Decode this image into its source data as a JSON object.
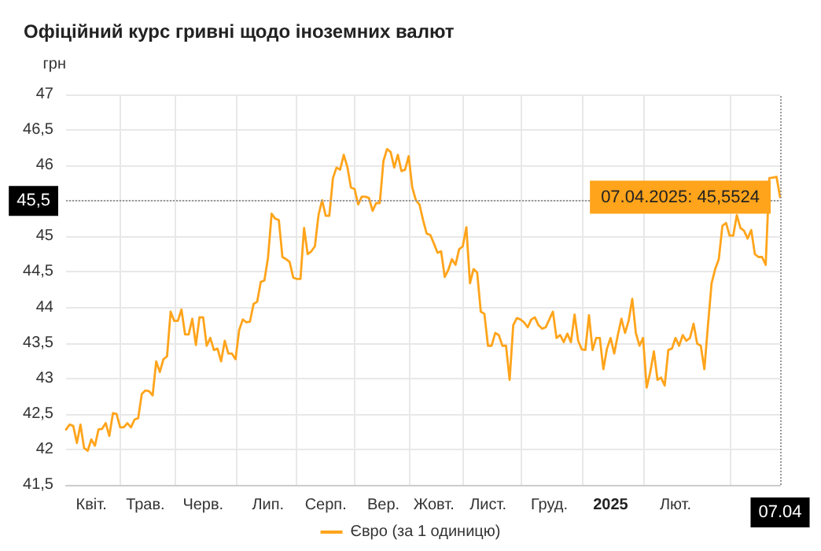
{
  "chart_data": {
    "type": "line",
    "title": "Офіційний курс гривні щодо іноземних валют",
    "ylabel": "грн",
    "categories": [
      null,
      null,
      null,
      null,
      null,
      null,
      null,
      "Квіт.",
      null,
      null,
      null,
      null,
      null,
      null,
      null,
      null,
      null,
      null,
      null,
      null,
      null,
      null,
      "Трав.",
      null,
      null,
      null,
      null,
      null,
      null,
      null,
      null,
      null,
      null,
      null,
      null,
      null,
      null,
      null,
      "Черв.",
      null,
      null,
      null,
      null,
      null,
      null,
      null,
      null,
      null,
      null,
      null,
      null,
      null,
      null,
      null,
      null,
      null,
      "Лип.",
      null,
      null,
      null,
      null,
      null,
      null,
      null,
      null,
      null,
      null,
      null,
      null,
      null,
      null,
      null,
      "Серп.",
      null,
      null,
      null,
      null,
      null,
      null,
      null,
      null,
      null,
      null,
      null,
      null,
      null,
      null,
      null,
      "Вер.",
      null,
      null,
      null,
      null,
      null,
      null,
      null,
      null,
      null,
      null,
      null,
      null,
      null,
      "Жовт.",
      null,
      null,
      null,
      null,
      null,
      null,
      null,
      null,
      null,
      null,
      null,
      null,
      null,
      null,
      "Лист.",
      null,
      null,
      null,
      null,
      null,
      null,
      null,
      null,
      null,
      null,
      null,
      null,
      null,
      null,
      null,
      null,
      "Груд.",
      null,
      null,
      null,
      null,
      null,
      null,
      null,
      null,
      null,
      null,
      null,
      null,
      null,
      null,
      null,
      null,
      "2025",
      null,
      null,
      null,
      null,
      null,
      null,
      null,
      null,
      null,
      null,
      null,
      null,
      null,
      null,
      null,
      null,
      null,
      "Лют.",
      null,
      null,
      null,
      null,
      null,
      null,
      null,
      null,
      null,
      null,
      null,
      null,
      null,
      null,
      null,
      null,
      null,
      null,
      null,
      null,
      null,
      null,
      null,
      null,
      null,
      null,
      null,
      null,
      "07.04"
    ],
    "series": [
      {
        "name": "Євро (за 1 одиницю)",
        "color": "#ffa41b",
        "values": [
          42.28,
          42.35,
          42.33,
          42.09,
          42.35,
          42.02,
          41.98,
          42.14,
          42.05,
          42.28,
          42.29,
          42.37,
          42.19,
          42.51,
          42.5,
          42.31,
          42.31,
          42.37,
          42.31,
          42.42,
          42.44,
          42.78,
          42.83,
          42.82,
          42.76,
          43.24,
          43.09,
          43.27,
          43.31,
          43.94,
          43.81,
          43.81,
          43.97,
          43.62,
          43.62,
          43.84,
          43.47,
          43.86,
          43.86,
          43.46,
          43.57,
          43.4,
          43.42,
          43.24,
          43.53,
          43.35,
          43.35,
          43.27,
          43.68,
          43.83,
          43.79,
          43.8,
          44.05,
          44.08,
          44.36,
          44.38,
          44.7,
          45.32,
          45.25,
          45.23,
          44.71,
          44.68,
          44.64,
          44.42,
          44.4,
          44.4,
          45.12,
          44.75,
          44.79,
          44.86,
          45.3,
          45.51,
          45.29,
          45.29,
          45.82,
          45.97,
          45.94,
          46.15,
          45.98,
          45.69,
          45.67,
          45.45,
          45.56,
          45.56,
          45.54,
          45.36,
          45.47,
          45.47,
          46.06,
          46.23,
          46.19,
          45.97,
          46.15,
          45.92,
          45.94,
          46.13,
          45.69,
          45.51,
          45.45,
          45.23,
          45.04,
          45.02,
          44.9,
          44.77,
          44.79,
          44.43,
          44.53,
          44.68,
          44.6,
          44.82,
          44.86,
          45.13,
          44.34,
          44.54,
          44.49,
          43.94,
          43.91,
          43.46,
          43.46,
          43.64,
          43.61,
          43.46,
          43.46,
          42.98,
          43.75,
          43.85,
          43.83,
          43.79,
          43.72,
          43.83,
          43.86,
          43.75,
          43.7,
          43.72,
          43.83,
          43.94,
          43.57,
          43.61,
          43.51,
          43.63,
          43.51,
          43.9,
          43.53,
          43.41,
          43.4,
          43.89,
          43.4,
          43.57,
          43.57,
          43.13,
          43.42,
          43.57,
          43.35,
          43.61,
          43.84,
          43.64,
          43.81,
          44.12,
          43.64,
          43.46,
          43.57,
          42.87,
          43.09,
          43.38,
          42.98,
          43.01,
          42.9,
          43.4,
          43.42,
          43.57,
          43.46,
          43.61,
          43.53,
          43.57,
          43.77,
          43.49,
          43.46,
          43.13,
          43.75,
          44.34,
          44.54,
          44.68,
          45.15,
          45.19,
          45.01,
          45.01,
          45.3,
          45.12,
          45.08,
          44.97,
          45.09,
          44.75,
          44.71,
          44.71,
          44.6,
          45.82,
          45.83,
          45.84,
          45.5524
        ]
      }
    ],
    "ylim": [
      41.5,
      47
    ],
    "yticks": [
      {
        "value": 41.5,
        "label": "41,5"
      },
      42,
      {
        "value": 42.5,
        "label": "42,5"
      },
      43,
      {
        "value": 43.5,
        "label": "43,5"
      },
      44,
      {
        "value": 44.5,
        "label": "44,5"
      },
      45,
      {
        "value": 45.5,
        "label": null
      },
      46,
      {
        "value": 46.5,
        "label": "46,5"
      },
      47
    ],
    "ref_lines": [
      {
        "axis": "y",
        "value": 45.5,
        "label": "45,5",
        "line_style": "dotted",
        "color": "#999999"
      },
      {
        "axis": "x",
        "value": "07.04",
        "line_style": "dotted",
        "color": "#999999"
      }
    ],
    "annotations": [
      {
        "text": "07.04.2025: 45,5524",
        "x": "07.04",
        "y": 45.5524
      }
    ],
    "grid": true,
    "legend": "bottom",
    "marker": "none",
    "line_style": "solid"
  }
}
